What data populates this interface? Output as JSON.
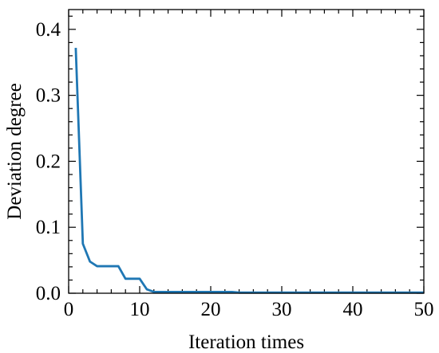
{
  "chart_data": {
    "type": "line",
    "xlabel": "Iteration times",
    "ylabel": "Deviation degree",
    "xlim": [
      0,
      50
    ],
    "ylim": [
      0,
      0.43
    ],
    "xticks": [
      0,
      10,
      20,
      30,
      40,
      50
    ],
    "yticks": [
      0.0,
      0.1,
      0.2,
      0.3,
      0.4
    ],
    "xtick_labels": [
      "0",
      "10",
      "20",
      "30",
      "40",
      "50"
    ],
    "ytick_labels": [
      "0.0",
      "0.1",
      "0.2",
      "0.3",
      "0.4"
    ],
    "grid": false,
    "minor_ticks": true,
    "tick_direction": "in",
    "series": [
      {
        "color": "#1f77b4",
        "x": [
          1,
          2,
          3,
          4,
          5,
          6,
          7,
          8,
          9,
          10,
          11,
          12,
          13,
          14,
          15,
          16,
          17,
          18,
          19,
          20,
          21,
          22,
          23,
          24,
          25,
          26,
          27,
          28,
          29,
          30,
          31,
          32,
          33,
          34,
          35,
          36,
          37,
          38,
          39,
          40,
          41,
          42,
          43,
          44,
          45,
          46,
          47,
          48,
          49,
          50
        ],
        "y": [
          0.372,
          0.075,
          0.048,
          0.041,
          0.041,
          0.041,
          0.041,
          0.022,
          0.022,
          0.022,
          0.006,
          0.002,
          0.002,
          0.002,
          0.002,
          0.002,
          0.002,
          0.002,
          0.002,
          0.002,
          0.002,
          0.002,
          0.002,
          0.001,
          0.001,
          0.001,
          0.001,
          0.001,
          0.001,
          0.001,
          0.001,
          0.001,
          0.001,
          0.001,
          0.001,
          0.001,
          0.001,
          0.001,
          0.001,
          0.001,
          0.001,
          0.001,
          0.001,
          0.001,
          0.001,
          0.001,
          0.001,
          0.001,
          0.001,
          0.001
        ]
      }
    ]
  }
}
